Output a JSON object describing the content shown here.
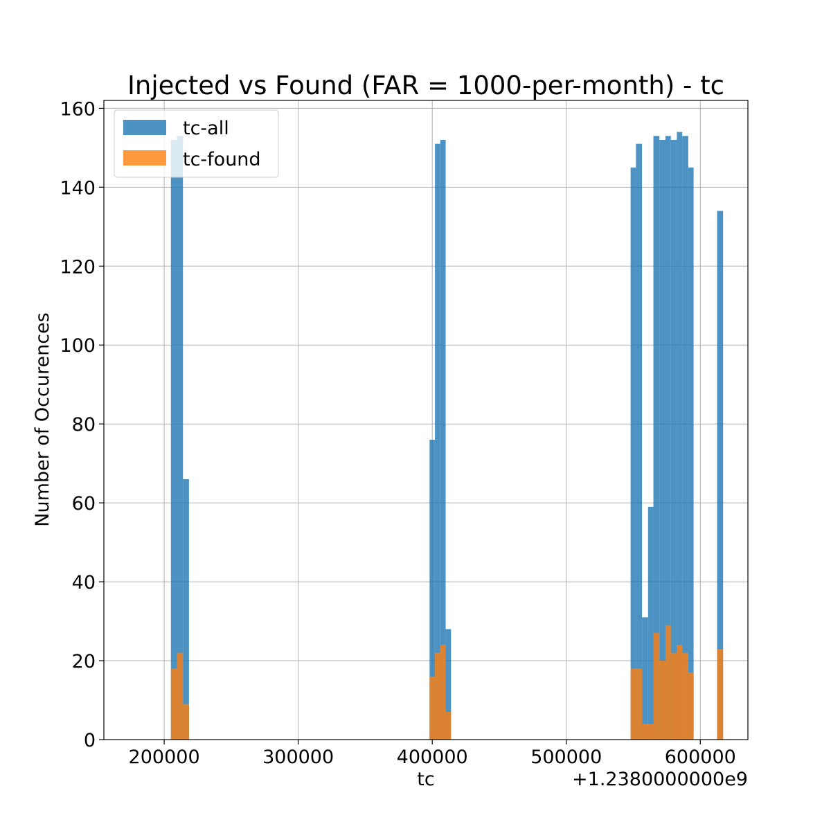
{
  "chart_data": {
    "type": "bar",
    "title": "Injected vs Found (FAR = 1000-per-month) - tc",
    "xlabel": "tc",
    "ylabel": "Number of Occurences",
    "x_offset_label": "+1.2380000000e9",
    "xlim": [
      155000,
      635500
    ],
    "ylim": [
      0,
      162
    ],
    "xticks": [
      200000,
      300000,
      400000,
      500000,
      600000
    ],
    "xtick_labels": [
      "200000",
      "300000",
      "400000",
      "500000",
      "600000"
    ],
    "yticks": [
      0,
      20,
      40,
      60,
      80,
      100,
      120,
      140,
      160
    ],
    "ytick_labels": [
      "0",
      "20",
      "40",
      "60",
      "80",
      "100",
      "120",
      "140",
      "160"
    ],
    "grid": true,
    "legend_position": "top-left",
    "series": [
      {
        "name": "tc-all",
        "color": "#1f77b4",
        "bins": [
          {
            "x0": 205000,
            "x1": 209500,
            "value": 152
          },
          {
            "x0": 209500,
            "x1": 214000,
            "value": 153
          },
          {
            "x0": 214000,
            "x1": 218500,
            "value": 66
          },
          {
            "x0": 398000,
            "x1": 402000,
            "value": 76
          },
          {
            "x0": 402000,
            "x1": 406000,
            "value": 151
          },
          {
            "x0": 406000,
            "x1": 410000,
            "value": 152
          },
          {
            "x0": 410000,
            "x1": 414000,
            "value": 28
          },
          {
            "x0": 548000,
            "x1": 552000,
            "value": 145
          },
          {
            "x0": 552000,
            "x1": 556500,
            "value": 151
          },
          {
            "x0": 556500,
            "x1": 561000,
            "value": 31
          },
          {
            "x0": 561000,
            "x1": 565000,
            "value": 59
          },
          {
            "x0": 565000,
            "x1": 569500,
            "value": 153
          },
          {
            "x0": 569500,
            "x1": 574000,
            "value": 152
          },
          {
            "x0": 574000,
            "x1": 578000,
            "value": 153
          },
          {
            "x0": 578000,
            "x1": 582500,
            "value": 152
          },
          {
            "x0": 582500,
            "x1": 586500,
            "value": 154
          },
          {
            "x0": 586500,
            "x1": 591000,
            "value": 153
          },
          {
            "x0": 591000,
            "x1": 595000,
            "value": 145
          },
          {
            "x0": 612500,
            "x1": 617000,
            "value": 134
          }
        ]
      },
      {
        "name": "tc-found",
        "color": "#ff7f0e",
        "bins": [
          {
            "x0": 205000,
            "x1": 209500,
            "value": 18
          },
          {
            "x0": 209500,
            "x1": 214000,
            "value": 22
          },
          {
            "x0": 214000,
            "x1": 218500,
            "value": 9
          },
          {
            "x0": 398000,
            "x1": 402000,
            "value": 16
          },
          {
            "x0": 402000,
            "x1": 406000,
            "value": 22
          },
          {
            "x0": 406000,
            "x1": 410000,
            "value": 24
          },
          {
            "x0": 410000,
            "x1": 414000,
            "value": 7
          },
          {
            "x0": 548000,
            "x1": 552000,
            "value": 18
          },
          {
            "x0": 552000,
            "x1": 556500,
            "value": 18
          },
          {
            "x0": 556500,
            "x1": 561000,
            "value": 4
          },
          {
            "x0": 561000,
            "x1": 565000,
            "value": 4
          },
          {
            "x0": 565000,
            "x1": 569500,
            "value": 27
          },
          {
            "x0": 569500,
            "x1": 574000,
            "value": 20
          },
          {
            "x0": 574000,
            "x1": 578000,
            "value": 29
          },
          {
            "x0": 578000,
            "x1": 582500,
            "value": 22
          },
          {
            "x0": 582500,
            "x1": 586500,
            "value": 24
          },
          {
            "x0": 586500,
            "x1": 591000,
            "value": 22
          },
          {
            "x0": 591000,
            "x1": 595000,
            "value": 17
          },
          {
            "x0": 612500,
            "x1": 617000,
            "value": 23
          }
        ]
      }
    ]
  }
}
